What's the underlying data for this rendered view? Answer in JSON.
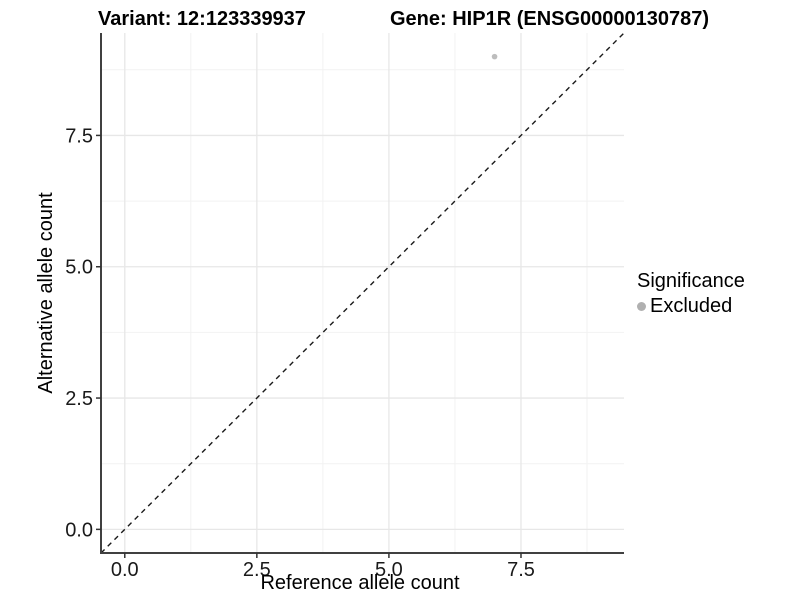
{
  "figure": {
    "title_left": "Variant: 12:123339937",
    "title_right": "Gene: HIP1R (ENSG00000130787)"
  },
  "chart_data": {
    "type": "scatter",
    "title": "Variant: 12:123339937   Gene: HIP1R (ENSG00000130787)",
    "xlabel": "Reference allele count",
    "ylabel": "Alternative allele count",
    "xlim": [
      -0.45,
      9.45
    ],
    "ylim": [
      -0.45,
      9.45
    ],
    "x_ticks": {
      "values": [
        0,
        2.5,
        5,
        7.5
      ],
      "labels": [
        "0.0",
        "2.5",
        "5.0",
        "7.5"
      ]
    },
    "y_ticks": {
      "values": [
        0,
        2.5,
        5,
        7.5
      ],
      "labels": [
        "0.0",
        "2.5",
        "5.0",
        "7.5"
      ]
    },
    "minor_gridlines": [
      1.25,
      3.75,
      6.25,
      8.75
    ],
    "grid": "major+minor",
    "points": [
      {
        "x": 7,
        "y": 9,
        "significance": "Excluded"
      }
    ],
    "reference_line": {
      "slope": 1,
      "intercept": 0,
      "style": "dashed",
      "note": "identity line y = x"
    },
    "legend": {
      "title": "Significance",
      "position": "right",
      "entries": [
        {
          "label": "Excluded",
          "color": "#b0b0b0"
        }
      ]
    }
  },
  "colors": {
    "background": "#ffffff",
    "point": "#bdbdbd",
    "legend_key": "#b0b0b0",
    "major_grid": "#e7e7e7",
    "minor_grid": "#f2f2f2",
    "axis_line": "#404040",
    "tick_mark": "#333333",
    "dashed_line": "#1a1a1a",
    "text": "#000000"
  }
}
